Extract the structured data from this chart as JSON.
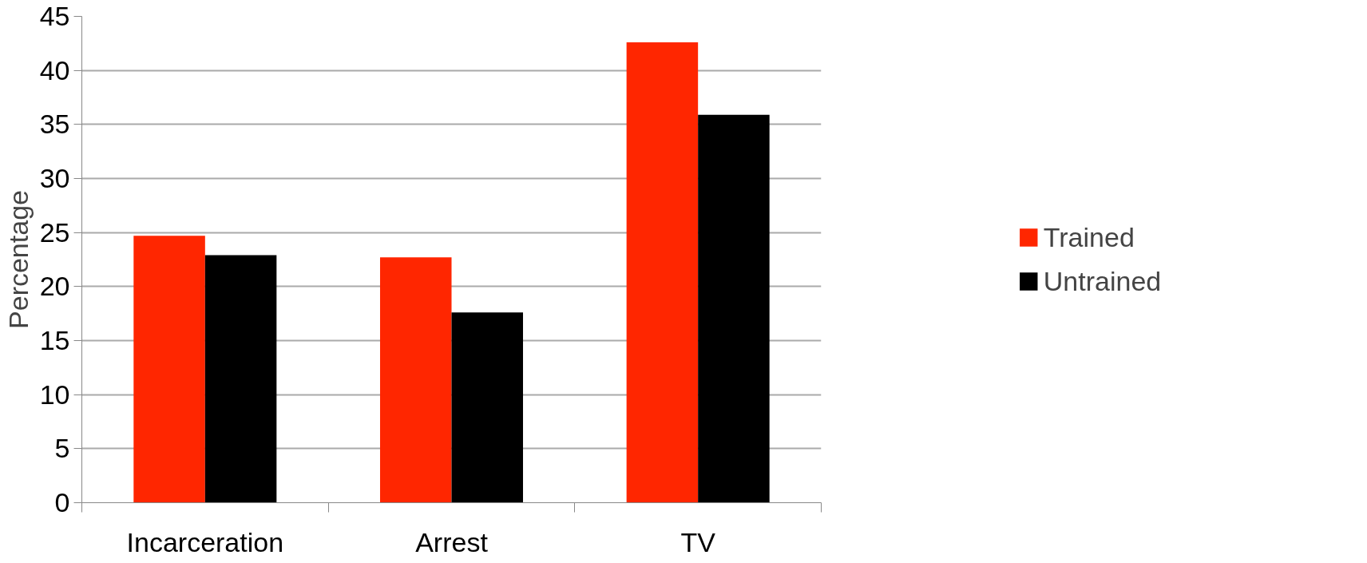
{
  "chart_data": {
    "type": "bar",
    "ylabel": "Percentage",
    "categories": [
      "Incarceration",
      "Arrest",
      "TV"
    ],
    "series": [
      {
        "name": "Trained",
        "color": "#ff2600",
        "values": [
          24.7,
          22.7,
          42.6
        ]
      },
      {
        "name": "Untrained",
        "color": "#000000",
        "values": [
          22.9,
          17.6,
          35.9
        ]
      }
    ],
    "ylim": [
      0,
      45
    ],
    "yticks": [
      0,
      5,
      10,
      15,
      20,
      25,
      30,
      35,
      40,
      45
    ],
    "grid": "y",
    "legend": "right"
  }
}
